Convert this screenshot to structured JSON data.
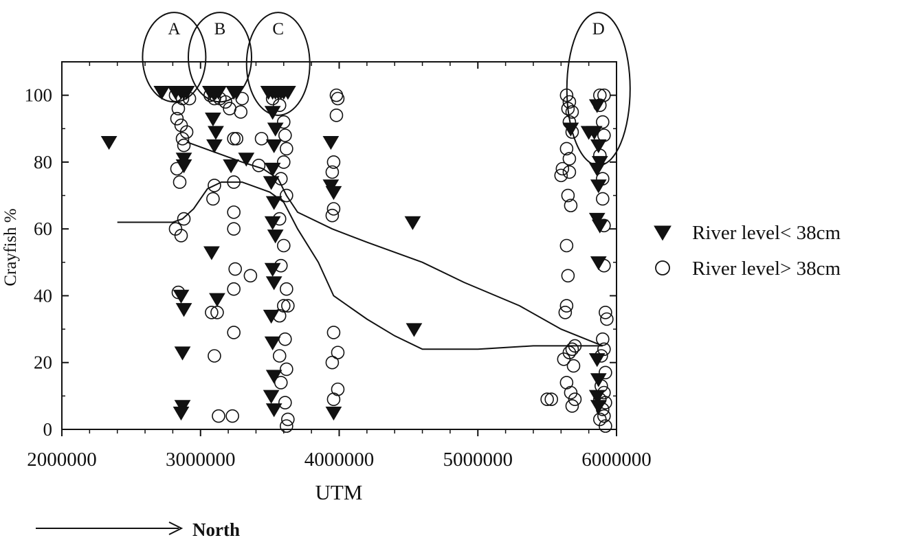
{
  "chart_data": {
    "type": "scatter",
    "title": "",
    "xlabel": "UTM",
    "ylabel": "Crayfish %",
    "xlim": [
      2000000,
      6000000
    ],
    "ylim": [
      0,
      110
    ],
    "xticks": [
      2000000,
      3000000,
      4000000,
      5000000,
      6000000
    ],
    "yticks": [
      0,
      20,
      40,
      60,
      80,
      100
    ],
    "grid": false,
    "legend_position": "right",
    "colors": {
      "ink": "#111111",
      "low_marker_fill": "#111111",
      "high_marker_fill": "#ffffff"
    },
    "series": [
      {
        "name": "River level< 38cm",
        "marker": "filled-down-triangle",
        "points": [
          [
            2340000,
            86
          ],
          [
            2720000,
            101
          ],
          [
            2820000,
            101
          ],
          [
            2860000,
            101
          ],
          [
            2880000,
            101
          ],
          [
            2900000,
            101
          ],
          [
            2880000,
            81
          ],
          [
            2880000,
            79
          ],
          [
            2860000,
            40
          ],
          [
            2880000,
            36
          ],
          [
            2870000,
            23
          ],
          [
            2870000,
            7
          ],
          [
            2860000,
            5
          ],
          [
            3070000,
            101
          ],
          [
            3090000,
            101
          ],
          [
            3100000,
            101
          ],
          [
            3110000,
            101
          ],
          [
            3130000,
            101
          ],
          [
            3240000,
            101
          ],
          [
            3260000,
            101
          ],
          [
            3090000,
            93
          ],
          [
            3110000,
            89
          ],
          [
            3100000,
            85
          ],
          [
            3080000,
            53
          ],
          [
            3120000,
            39
          ],
          [
            3220000,
            79
          ],
          [
            3330000,
            81
          ],
          [
            3490000,
            101
          ],
          [
            3520000,
            101
          ],
          [
            3540000,
            101
          ],
          [
            3560000,
            101
          ],
          [
            3580000,
            101
          ],
          [
            3600000,
            101
          ],
          [
            3630000,
            101
          ],
          [
            3520000,
            95
          ],
          [
            3540000,
            90
          ],
          [
            3530000,
            85
          ],
          [
            3520000,
            78
          ],
          [
            3510000,
            74
          ],
          [
            3530000,
            68
          ],
          [
            3520000,
            62
          ],
          [
            3540000,
            58
          ],
          [
            3520000,
            48
          ],
          [
            3530000,
            44
          ],
          [
            3510000,
            34
          ],
          [
            3520000,
            26
          ],
          [
            3530000,
            16
          ],
          [
            3510000,
            10
          ],
          [
            3530000,
            6
          ],
          [
            3940000,
            86
          ],
          [
            3940000,
            73
          ],
          [
            3960000,
            71
          ],
          [
            3960000,
            5
          ],
          [
            4530000,
            62
          ],
          [
            4540000,
            30
          ],
          [
            5670000,
            90
          ],
          [
            5800000,
            89
          ],
          [
            5840000,
            89
          ],
          [
            5860000,
            97
          ],
          [
            5870000,
            85
          ],
          [
            5880000,
            80
          ],
          [
            5860000,
            78
          ],
          [
            5870000,
            73
          ],
          [
            5860000,
            63
          ],
          [
            5880000,
            61
          ],
          [
            5870000,
            50
          ],
          [
            5860000,
            21
          ],
          [
            5870000,
            15
          ],
          [
            5860000,
            10
          ],
          [
            5870000,
            7
          ]
        ]
      },
      {
        "name": "River level> 38cm",
        "marker": "open-circle",
        "points": [
          [
            2820000,
            100
          ],
          [
            2870000,
            99
          ],
          [
            2920000,
            99
          ],
          [
            2840000,
            96
          ],
          [
            2830000,
            93
          ],
          [
            2860000,
            91
          ],
          [
            2900000,
            89
          ],
          [
            2870000,
            87
          ],
          [
            2880000,
            85
          ],
          [
            2830000,
            78
          ],
          [
            2850000,
            74
          ],
          [
            2880000,
            63
          ],
          [
            2820000,
            60
          ],
          [
            2860000,
            58
          ],
          [
            2840000,
            41
          ],
          [
            3070000,
            100
          ],
          [
            3100000,
            99
          ],
          [
            3140000,
            99
          ],
          [
            3180000,
            98
          ],
          [
            3210000,
            96
          ],
          [
            3300000,
            99
          ],
          [
            3290000,
            95
          ],
          [
            3240000,
            87
          ],
          [
            3260000,
            87
          ],
          [
            3100000,
            73
          ],
          [
            3090000,
            69
          ],
          [
            3240000,
            74
          ],
          [
            3240000,
            65
          ],
          [
            3240000,
            60
          ],
          [
            3250000,
            48
          ],
          [
            3240000,
            42
          ],
          [
            3360000,
            46
          ],
          [
            3080000,
            35
          ],
          [
            3120000,
            35
          ],
          [
            3100000,
            22
          ],
          [
            3240000,
            29
          ],
          [
            3130000,
            4
          ],
          [
            3230000,
            4
          ],
          [
            3420000,
            79
          ],
          [
            3440000,
            87
          ],
          [
            3520000,
            99
          ],
          [
            3570000,
            97
          ],
          [
            3600000,
            92
          ],
          [
            3610000,
            88
          ],
          [
            3620000,
            84
          ],
          [
            3600000,
            80
          ],
          [
            3580000,
            75
          ],
          [
            3620000,
            70
          ],
          [
            3570000,
            63
          ],
          [
            3600000,
            55
          ],
          [
            3580000,
            49
          ],
          [
            3620000,
            42
          ],
          [
            3600000,
            37
          ],
          [
            3630000,
            37
          ],
          [
            3570000,
            34
          ],
          [
            3610000,
            27
          ],
          [
            3570000,
            22
          ],
          [
            3620000,
            18
          ],
          [
            3580000,
            14
          ],
          [
            3610000,
            8
          ],
          [
            3630000,
            3
          ],
          [
            3620000,
            1
          ],
          [
            3980000,
            100
          ],
          [
            3990000,
            99
          ],
          [
            3980000,
            94
          ],
          [
            3960000,
            80
          ],
          [
            3950000,
            77
          ],
          [
            3960000,
            66
          ],
          [
            3950000,
            64
          ],
          [
            3960000,
            29
          ],
          [
            3990000,
            23
          ],
          [
            3950000,
            20
          ],
          [
            3990000,
            12
          ],
          [
            3960000,
            9
          ],
          [
            5640000,
            100
          ],
          [
            5660000,
            98
          ],
          [
            5650000,
            96
          ],
          [
            5680000,
            95
          ],
          [
            5660000,
            92
          ],
          [
            5680000,
            89
          ],
          [
            5640000,
            84
          ],
          [
            5660000,
            81
          ],
          [
            5610000,
            78
          ],
          [
            5600000,
            76
          ],
          [
            5660000,
            77
          ],
          [
            5650000,
            70
          ],
          [
            5670000,
            67
          ],
          [
            5640000,
            55
          ],
          [
            5650000,
            46
          ],
          [
            5640000,
            37
          ],
          [
            5630000,
            35
          ],
          [
            5620000,
            21
          ],
          [
            5660000,
            23
          ],
          [
            5680000,
            24
          ],
          [
            5700000,
            25
          ],
          [
            5690000,
            19
          ],
          [
            5640000,
            14
          ],
          [
            5670000,
            11
          ],
          [
            5700000,
            9
          ],
          [
            5500000,
            9
          ],
          [
            5530000,
            9
          ],
          [
            5680000,
            7
          ],
          [
            5880000,
            100
          ],
          [
            5910000,
            100
          ],
          [
            5880000,
            97
          ],
          [
            5900000,
            92
          ],
          [
            5910000,
            88
          ],
          [
            5880000,
            82
          ],
          [
            5900000,
            75
          ],
          [
            5900000,
            69
          ],
          [
            5910000,
            61
          ],
          [
            5910000,
            49
          ],
          [
            5920000,
            35
          ],
          [
            5930000,
            33
          ],
          [
            5900000,
            27
          ],
          [
            5910000,
            24
          ],
          [
            5890000,
            22
          ],
          [
            5920000,
            17
          ],
          [
            5890000,
            13
          ],
          [
            5910000,
            11
          ],
          [
            5880000,
            9
          ],
          [
            5920000,
            8
          ],
          [
            5900000,
            6
          ],
          [
            5910000,
            4
          ],
          [
            5880000,
            3
          ],
          [
            5920000,
            1
          ]
        ]
      }
    ],
    "trend_lines": [
      {
        "points": [
          [
            2400000,
            62
          ],
          [
            2800000,
            62
          ],
          [
            2870000,
            63
          ],
          [
            2950000,
            66
          ],
          [
            3050000,
            72
          ],
          [
            3150000,
            74
          ],
          [
            3300000,
            74
          ],
          [
            3500000,
            71
          ],
          [
            3600000,
            68
          ],
          [
            3700000,
            60
          ],
          [
            3850000,
            50
          ],
          [
            3960000,
            40
          ],
          [
            4200000,
            33
          ],
          [
            4400000,
            28
          ],
          [
            4600000,
            24
          ],
          [
            5000000,
            24
          ],
          [
            5400000,
            25
          ],
          [
            5900000,
            25
          ]
        ]
      },
      {
        "points": [
          [
            2900000,
            86
          ],
          [
            3100000,
            83
          ],
          [
            3300000,
            80
          ],
          [
            3450000,
            78
          ],
          [
            3560000,
            75
          ],
          [
            3620000,
            70
          ],
          [
            3700000,
            65
          ],
          [
            3950000,
            60
          ],
          [
            4200000,
            56
          ],
          [
            4600000,
            50
          ],
          [
            4900000,
            44
          ],
          [
            5300000,
            37
          ],
          [
            5600000,
            30
          ],
          [
            5900000,
            25
          ]
        ]
      }
    ],
    "group_annotations": [
      {
        "label": "A",
        "x": 2810000,
        "y_top": 126,
        "y_bottom": 98
      },
      {
        "label": "B",
        "x": 3140000,
        "y_top": 126,
        "y_bottom": 98
      },
      {
        "label": "C",
        "x": 3560000,
        "y_top": 126,
        "y_bottom": 94
      },
      {
        "label": "D",
        "x": 5870000,
        "y_top": 126,
        "y_bottom": 79
      }
    ],
    "direction_label": "North"
  }
}
